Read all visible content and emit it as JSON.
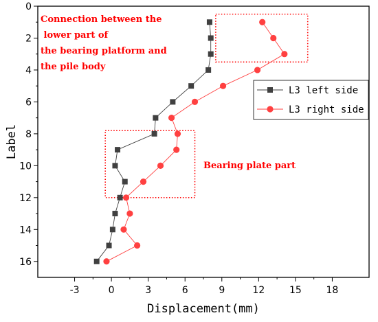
{
  "chart_data": {
    "type": "line",
    "xlabel": "Displacement(mm)",
    "ylabel": "Label",
    "xlim": [
      -6,
      21
    ],
    "ylim": [
      0,
      17
    ],
    "y_inverted": true,
    "x_ticks": [
      -3,
      0,
      3,
      6,
      9,
      12,
      15,
      18
    ],
    "y_ticks": [
      0,
      2,
      4,
      6,
      8,
      10,
      12,
      14,
      16
    ],
    "grid": false,
    "legend_position": "right",
    "series": [
      {
        "name": "L3 left side",
        "color": "#404040",
        "marker": "square",
        "x": [
          8.0,
          8.1,
          8.1,
          7.9,
          6.5,
          5.0,
          3.6,
          3.5,
          0.5,
          0.3,
          1.1,
          0.7,
          0.3,
          0.1,
          -0.2,
          -1.2
        ],
        "y": [
          1,
          2,
          3,
          4,
          5,
          6,
          7,
          8,
          9,
          10,
          11,
          12,
          13,
          14,
          15,
          16
        ]
      },
      {
        "name": "L3 right side",
        "color": "#ff4040",
        "marker": "circle",
        "x": [
          12.3,
          13.2,
          14.1,
          11.9,
          9.1,
          6.8,
          4.9,
          5.4,
          5.3,
          4.0,
          2.6,
          1.2,
          1.5,
          1.0,
          2.1,
          -0.4
        ],
        "y": [
          1,
          2,
          3,
          4,
          5,
          6,
          7,
          8,
          9,
          10,
          11,
          12,
          13,
          14,
          15,
          16
        ]
      }
    ],
    "annotations": [
      {
        "id": "top",
        "lines": [
          "Connection between the",
          " lower part of",
          "the bearing platform and",
          "the pile body"
        ],
        "box": {
          "x0": 8.5,
          "x1": 16.0,
          "y0": 0.5,
          "y1": 3.5
        }
      },
      {
        "id": "mid",
        "lines": [
          "Bearing plate part"
        ],
        "box": {
          "x0": -0.5,
          "x1": 6.8,
          "y0": 7.8,
          "y1": 12.0
        }
      }
    ]
  }
}
